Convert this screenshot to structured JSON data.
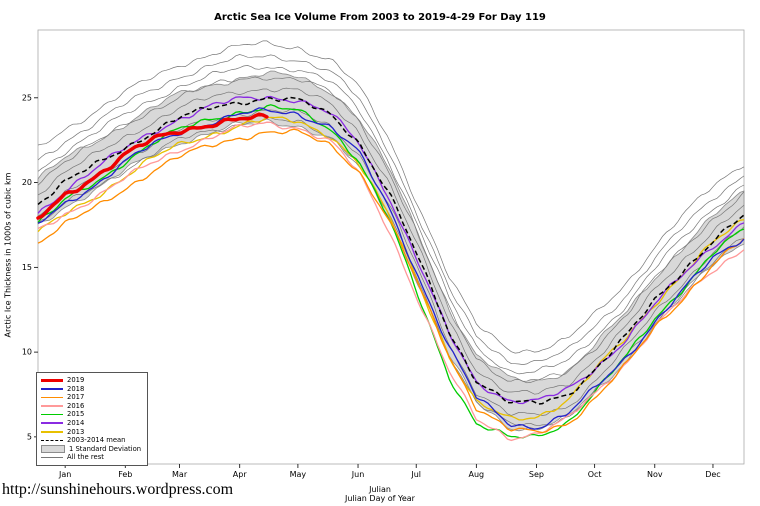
{
  "page": {
    "url_text": "http://sunshinehours.wordpress.com"
  },
  "chart_data": {
    "type": "line",
    "title": "Arctic Sea Ice Volume From 2003 to 2019-4-29  For Day 119",
    "ylabel": "Arctic Ice Thickness in 1000s of cubic km",
    "xlabel_line1": "Julian",
    "xlabel_line2": "Julian Day of Year",
    "xlim": [
      1,
      365
    ],
    "ylim": [
      3.4,
      29.0
    ],
    "yticks": [
      5,
      10,
      15,
      20,
      25
    ],
    "months": [
      {
        "label": "Jan",
        "day": 15
      },
      {
        "label": "Feb",
        "day": 46
      },
      {
        "label": "Mar",
        "day": 74
      },
      {
        "label": "Apr",
        "day": 105
      },
      {
        "label": "May",
        "day": 135
      },
      {
        "label": "Jun",
        "day": 166
      },
      {
        "label": "Jul",
        "day": 196
      },
      {
        "label": "Aug",
        "day": 227
      },
      {
        "label": "Sep",
        "day": 258
      },
      {
        "label": "Oct",
        "day": 288
      },
      {
        "label": "Nov",
        "day": 319
      },
      {
        "label": "Dec",
        "day": 349
      }
    ],
    "x_control": [
      1,
      15,
      32,
      46,
      60,
      74,
      91,
      105,
      119,
      135,
      152,
      166,
      182,
      196,
      213,
      227,
      244,
      258,
      274,
      288,
      305,
      319,
      335,
      349,
      365
    ],
    "series": [
      {
        "name": "2019",
        "color": "#EE0000",
        "width": 3.5,
        "values": [
          17.8,
          19.3,
          20.5,
          21.6,
          22.5,
          23.1,
          23.5,
          23.7,
          23.8
        ]
      },
      {
        "name": "2018",
        "color": "#2222CC",
        "width": 1.3,
        "values": [
          17.5,
          18.8,
          20.0,
          21.2,
          22.2,
          23.0,
          23.6,
          24.0,
          24.2,
          24.1,
          23.3,
          21.8,
          18.5,
          14.8,
          10.3,
          7.3,
          5.8,
          5.6,
          6.3,
          7.8,
          9.8,
          11.8,
          13.8,
          15.5,
          16.8
        ]
      },
      {
        "name": "2017",
        "color": "#FF8C00",
        "width": 1.3,
        "values": [
          16.5,
          17.5,
          18.6,
          19.7,
          20.7,
          21.5,
          22.2,
          22.7,
          23.0,
          22.9,
          22.2,
          20.8,
          17.8,
          14.2,
          9.8,
          6.8,
          5.4,
          5.2,
          5.8,
          7.3,
          9.3,
          11.4,
          13.4,
          15.2,
          16.6
        ]
      },
      {
        "name": "2016",
        "color": "#FF9999",
        "width": 1.3,
        "values": [
          17.2,
          18.2,
          19.2,
          20.2,
          21.2,
          22.0,
          22.7,
          23.2,
          23.5,
          23.3,
          22.4,
          20.6,
          17.2,
          13.4,
          8.8,
          6.0,
          5.0,
          5.2,
          6.0,
          7.5,
          9.5,
          11.5,
          13.3,
          14.8,
          16.2
        ]
      },
      {
        "name": "2015",
        "color": "#00CC00",
        "width": 1.3,
        "values": [
          17.6,
          18.9,
          20.1,
          21.3,
          22.3,
          23.1,
          23.8,
          24.2,
          24.4,
          24.2,
          23.2,
          21.4,
          17.8,
          13.6,
          8.6,
          5.8,
          4.9,
          5.0,
          5.9,
          7.6,
          9.8,
          12.0,
          14.0,
          15.8,
          17.2
        ]
      },
      {
        "name": "2014",
        "color": "#8A2BE2",
        "width": 1.3,
        "values": [
          18.2,
          19.6,
          20.9,
          22.0,
          23.0,
          23.8,
          24.5,
          24.9,
          25.1,
          24.9,
          24.0,
          22.4,
          19.2,
          15.6,
          11.0,
          8.2,
          7.2,
          7.1,
          7.7,
          9.0,
          10.9,
          12.8,
          14.7,
          16.3,
          17.7
        ]
      },
      {
        "name": "2013",
        "color": "#E8C000",
        "width": 1.3,
        "values": [
          17.0,
          18.1,
          19.3,
          20.4,
          21.4,
          22.2,
          22.9,
          23.4,
          23.7,
          23.6,
          22.8,
          21.2,
          18.0,
          14.4,
          9.8,
          7.0,
          6.0,
          6.2,
          7.2,
          8.9,
          10.9,
          12.9,
          14.8,
          16.4,
          17.8
        ]
      }
    ],
    "mean": {
      "name": "2003-2014 mean",
      "color": "#000000",
      "dash": "5,3",
      "width": 1.5,
      "values": [
        18.8,
        20.0,
        21.1,
        22.1,
        23.0,
        23.8,
        24.4,
        24.8,
        25.0,
        24.8,
        24.0,
        22.5,
        19.4,
        15.8,
        11.2,
        8.4,
        7.0,
        6.9,
        7.5,
        9.0,
        11.0,
        13.0,
        15.0,
        16.6,
        18.0
      ]
    },
    "band": {
      "name": "1 Standard Deviation",
      "fill": "#D8D8D8",
      "stroke": "#8C8C8C",
      "upper": [
        20.2,
        21.4,
        22.5,
        23.5,
        24.4,
        25.2,
        25.8,
        26.2,
        26.4,
        26.2,
        25.4,
        23.9,
        20.8,
        17.2,
        12.6,
        9.8,
        8.4,
        8.3,
        8.9,
        10.4,
        12.4,
        14.4,
        16.4,
        18.0,
        19.4
      ],
      "lower": [
        17.4,
        18.6,
        19.7,
        20.7,
        21.6,
        22.4,
        23.0,
        23.4,
        23.6,
        23.4,
        22.6,
        21.1,
        18.0,
        14.4,
        9.8,
        7.0,
        5.6,
        5.5,
        6.1,
        7.6,
        9.6,
        11.6,
        13.6,
        15.2,
        16.6
      ]
    },
    "rest": {
      "name": "All the rest",
      "color": "#777777",
      "width": 0.7,
      "offsets": [
        3.2,
        2.5,
        1.9,
        1.3,
        0.6,
        -0.7,
        -1.3
      ]
    },
    "legend": [
      {
        "label": "2019",
        "swatch": "thick",
        "color": "#EE0000"
      },
      {
        "label": "2018",
        "swatch": "line",
        "color": "#2222CC"
      },
      {
        "label": "2017",
        "swatch": "line",
        "color": "#FF8C00"
      },
      {
        "label": "2016",
        "swatch": "line",
        "color": "#FF9999"
      },
      {
        "label": "2015",
        "swatch": "line",
        "color": "#00CC00"
      },
      {
        "label": "2014",
        "swatch": "line",
        "color": "#8A2BE2"
      },
      {
        "label": "2013",
        "swatch": "line",
        "color": "#E8C000"
      },
      {
        "label": "2003-2014 mean",
        "swatch": "dashed",
        "color": "#000000"
      },
      {
        "label": "1 Standard Deviation",
        "swatch": "box",
        "color": "#D8D8D8"
      },
      {
        "label": "All the rest",
        "swatch": "thin",
        "color": "#777777"
      }
    ]
  }
}
